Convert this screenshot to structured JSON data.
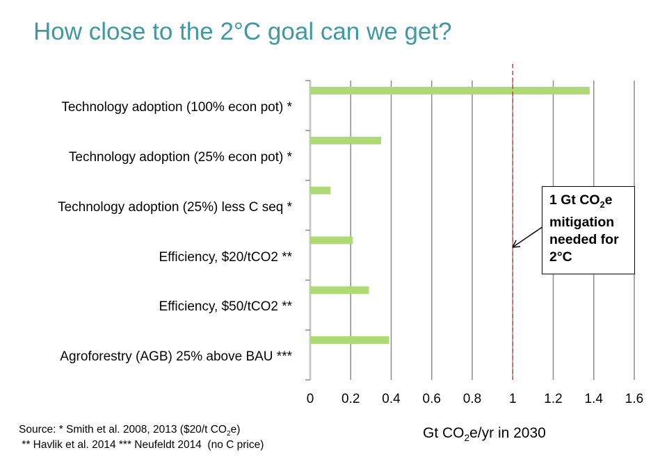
{
  "title": "How close to the 2°C goal can we get?",
  "chart_data": {
    "type": "bar",
    "orientation": "horizontal",
    "categories": [
      "Technology adoption (100% econ pot)  *",
      "Technology adoption (25% econ pot) *",
      "Technology adoption (25%) less C seq *",
      "Efficiency, $20/tCO2 **",
      "Efficiency, $50/tCO2 **",
      "Agroforestry (AGB) 25% above BAU ***"
    ],
    "values": [
      1.38,
      0.35,
      0.1,
      0.21,
      0.29,
      0.39
    ],
    "xlim": [
      0,
      1.6
    ],
    "xticks": [
      "0",
      "0.2",
      "0.4",
      "0.6",
      "0.8",
      "1",
      "1.2",
      "1.4",
      "1.6"
    ],
    "xlabel_parts": [
      "Gt CO",
      "2",
      "e/yr in 2030"
    ],
    "reference_line": 1,
    "grid": "vertical",
    "bar_color": "#aed974",
    "reference_color": "#e03030",
    "annotation": {
      "l1a": "1 Gt CO",
      "l1sub": "2",
      "l1b": "e",
      "l2": "mitigation",
      "l3": "needed for",
      "l4": "2°C"
    }
  },
  "source": {
    "line1a": "Source: * Smith et al. 2008, 2013 ($20/t CO",
    "line1sub": "2",
    "line1b": "e)",
    "line2": " ** Havlik et al. 2014 *** Neufeldt 2014  (no C price)"
  }
}
